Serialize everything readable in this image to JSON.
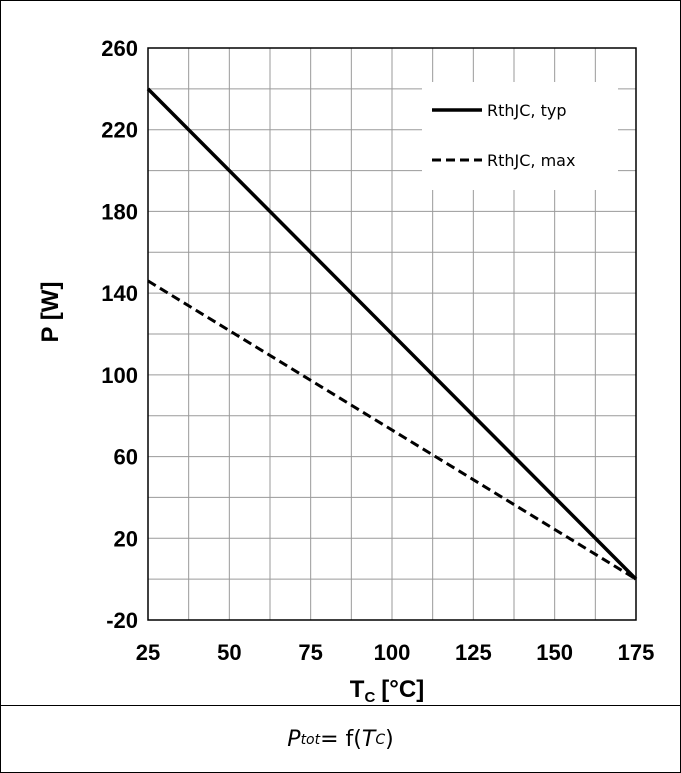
{
  "chart_data": {
    "type": "line",
    "xlabel_main": "T",
    "xlabel_sub": "C",
    "xlabel_unit": "[°C]",
    "ylabel": "P [W]",
    "xlim": [
      25,
      175
    ],
    "ylim": [
      -20,
      260
    ],
    "x_ticks": [
      25,
      50,
      75,
      100,
      125,
      150,
      175
    ],
    "y_ticks": [
      -20,
      20,
      60,
      100,
      140,
      180,
      220,
      260
    ],
    "x_grid_step": 12.5,
    "y_grid_step": 20,
    "grid": true,
    "legend_position": "top-right",
    "series": [
      {
        "name": "RthJC, typ",
        "style": "solid",
        "color": "#000000",
        "x": [
          25,
          175
        ],
        "y": [
          240,
          0
        ]
      },
      {
        "name": "RthJC, max",
        "style": "dashed",
        "color": "#000000",
        "x": [
          25,
          175
        ],
        "y": [
          146,
          0
        ]
      }
    ]
  },
  "caption": {
    "lhs": "P",
    "lhs_sub": "tot",
    "eq": "= f(",
    "arg": "T",
    "arg_sub": "C",
    "close": ")"
  }
}
